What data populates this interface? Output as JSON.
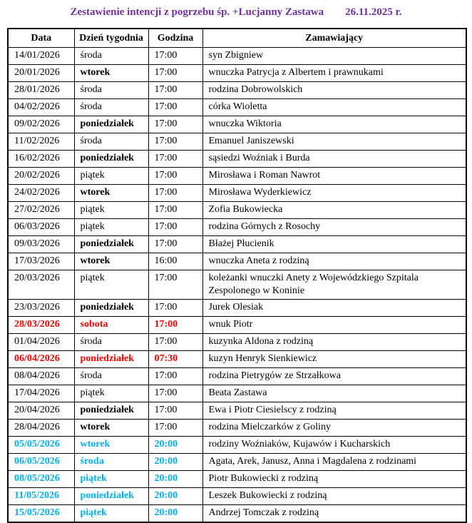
{
  "title": {
    "main": "Zestawienie intencji z pogrzebu śp. +Lucjanny Zastawa",
    "date": "26.11.2025 r."
  },
  "colors": {
    "title": "#7030A0",
    "highlight_red": "#FF0000",
    "highlight_cyan": "#00B0F0",
    "text": "#000000",
    "border": "#000000"
  },
  "table": {
    "headers": [
      "Data",
      "Dzień tygodnia",
      "Godzina",
      "Zamawiający"
    ],
    "rows": [
      {
        "date": "14/01/2026",
        "day": "środa",
        "time": "17:00",
        "orderer": "syn Zbigniew",
        "color": "black",
        "day_bold": false
      },
      {
        "date": "20/01/2026",
        "day": "wtorek",
        "time": "17:00",
        "orderer": "wnuczka Patrycja z Albertem i prawnukami",
        "color": "black",
        "day_bold": true
      },
      {
        "date": "28/01/2026",
        "day": "środa",
        "time": "17:00",
        "orderer": "rodzina Dobrowolskich",
        "color": "black",
        "day_bold": false
      },
      {
        "date": "04/02/2026",
        "day": "środa",
        "time": "17:00",
        "orderer": "córka Wioletta",
        "color": "black",
        "day_bold": false
      },
      {
        "date": "09/02/2026",
        "day": "poniedziałek",
        "time": "17:00",
        "orderer": "wnuczka Wiktoria",
        "color": "black",
        "day_bold": true
      },
      {
        "date": "11/02/2026",
        "day": "środa",
        "time": "17:00",
        "orderer": "Emanuel Janiszewski",
        "color": "black",
        "day_bold": false
      },
      {
        "date": "16/02/2026",
        "day": "poniedziałek",
        "time": "17:00",
        "orderer": "sąsiedzi Woźniak i Burda",
        "color": "black",
        "day_bold": true
      },
      {
        "date": "20/02/2026",
        "day": "piątek",
        "time": "17:00",
        "orderer": "Mirosława i Roman Nawrot",
        "color": "black",
        "day_bold": false
      },
      {
        "date": "24/02/2026",
        "day": "wtorek",
        "time": "17:00",
        "orderer": "Mirosława Wyderkiewicz",
        "color": "black",
        "day_bold": true
      },
      {
        "date": "27/02/2026",
        "day": "piątek",
        "time": "17:00",
        "orderer": "Zofia Bukowiecka",
        "color": "black",
        "day_bold": false
      },
      {
        "date": "06/03/2026",
        "day": "piątek",
        "time": "17:00",
        "orderer": "rodzina Górnych z Rosochy",
        "color": "black",
        "day_bold": false
      },
      {
        "date": "09/03/2026",
        "day": "poniedziałek",
        "time": "17:00",
        "orderer": "Błażej Płucienik",
        "color": "black",
        "day_bold": true
      },
      {
        "date": "17/03/2026",
        "day": "wtorek",
        "time": "16:00",
        "orderer": "wnuczka Aneta z rodziną",
        "color": "black",
        "day_bold": true
      },
      {
        "date": "20/03/2026",
        "day": "piątek",
        "time": "17:00",
        "orderer": "koleżanki wnuczki Anety z Wojewódzkiego Szpitala Zespolonego w Koninie",
        "color": "black",
        "day_bold": false
      },
      {
        "date": "23/03/2026",
        "day": "poniedziałek",
        "time": "17:00",
        "orderer": "Jurek Olesiak",
        "color": "black",
        "day_bold": true
      },
      {
        "date": "28/03/2026",
        "day": "sobota",
        "time": "17:00",
        "orderer": "wnuk Piotr",
        "color": "red",
        "day_bold": true
      },
      {
        "date": "01/04/2026",
        "day": "środa",
        "time": "17:00",
        "orderer": "kuzynka Aldona z rodziną",
        "color": "black",
        "day_bold": false
      },
      {
        "date": "06/04/2026",
        "day": "poniedziałek",
        "time": "07:30",
        "orderer": "kuzyn Henryk Sienkiewicz",
        "color": "red",
        "day_bold": true
      },
      {
        "date": "08/04/2026",
        "day": "środa",
        "time": "17:00",
        "orderer": "rodzina Pietrygów ze Strzałkowa",
        "color": "black",
        "day_bold": false
      },
      {
        "date": "17/04/2026",
        "day": "piątek",
        "time": "17:00",
        "orderer": "Beata Zastawa",
        "color": "black",
        "day_bold": false
      },
      {
        "date": "20/04/2026",
        "day": "poniedziałek",
        "time": "17:00",
        "orderer": "Ewa i Piotr Ciesielscy z rodziną",
        "color": "black",
        "day_bold": true
      },
      {
        "date": "28/04/2026",
        "day": "wtorek",
        "time": "17:00",
        "orderer": "rodzina Mielczarków z Goliny",
        "color": "black",
        "day_bold": true
      },
      {
        "date": "05/05/2026",
        "day": "wtorek",
        "time": "20:00",
        "orderer": "rodziny Woźniaków, Kujawów i Kucharskich",
        "color": "cyan",
        "day_bold": true
      },
      {
        "date": "06/05/2026",
        "day": "środa",
        "time": "20:00",
        "orderer": "Agata, Arek, Janusz, Anna i Magdalena z rodzinami",
        "color": "cyan",
        "day_bold": true
      },
      {
        "date": "08/05/2026",
        "day": "piątek",
        "time": "20:00",
        "orderer": "Piotr Bukowiecki z rodziną",
        "color": "cyan",
        "day_bold": true
      },
      {
        "date": "11/05/2026",
        "day": "poniedziałek",
        "time": "20:00",
        "orderer": "Leszek Bukowiecki z rodziną",
        "color": "cyan",
        "day_bold": true
      },
      {
        "date": "15/05/2026",
        "day": "piątek",
        "time": "20:00",
        "orderer": "Andrzej Tomczak z rodziną",
        "color": "cyan",
        "day_bold": true
      }
    ]
  }
}
